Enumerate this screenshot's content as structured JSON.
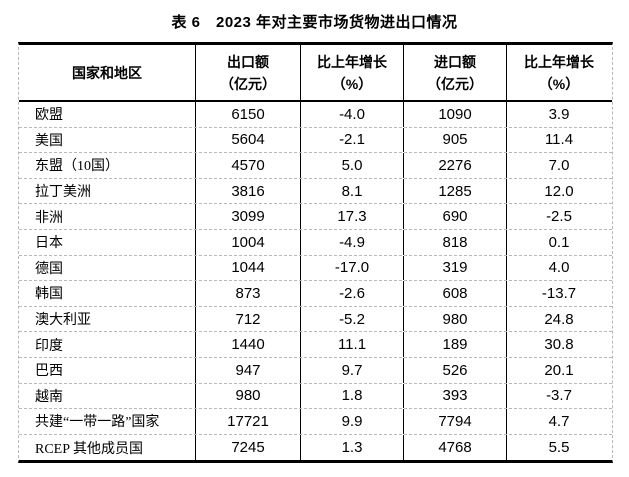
{
  "title": "表 6　2023 年对主要市场货物进出口情况",
  "table": {
    "headers": [
      {
        "line1": "国家和地区",
        "line2": ""
      },
      {
        "line1": "出口额",
        "line2": "（亿元）"
      },
      {
        "line1": "比上年增长",
        "line2": "（%）"
      },
      {
        "line1": "进口额",
        "line2": "（亿元）"
      },
      {
        "line1": "比上年增长",
        "line2": "（%）"
      }
    ],
    "rows": [
      [
        "欧盟",
        "6150",
        "-4.0",
        "1090",
        "3.9"
      ],
      [
        "美国",
        "5604",
        "-2.1",
        "905",
        "11.4"
      ],
      [
        "东盟（10国）",
        "4570",
        "5.0",
        "2276",
        "7.0"
      ],
      [
        "拉丁美洲",
        "3816",
        "8.1",
        "1285",
        "12.0"
      ],
      [
        "非洲",
        "3099",
        "17.3",
        "690",
        "-2.5"
      ],
      [
        "日本",
        "1004",
        "-4.9",
        "818",
        "0.1"
      ],
      [
        "德国",
        "1044",
        "-17.0",
        "319",
        "4.0"
      ],
      [
        "韩国",
        "873",
        "-2.6",
        "608",
        "-13.7"
      ],
      [
        "澳大利亚",
        "712",
        "-5.2",
        "980",
        "24.8"
      ],
      [
        "印度",
        "1440",
        "11.1",
        "189",
        "30.8"
      ],
      [
        "巴西",
        "947",
        "9.7",
        "526",
        "20.1"
      ],
      [
        "越南",
        "980",
        "1.8",
        "393",
        "-3.7"
      ],
      [
        "共建“一带一路”国家",
        "17721",
        "9.9",
        "7794",
        "4.7"
      ],
      [
        "RCEP 其他成员国",
        "7245",
        "1.3",
        "4768",
        "5.5"
      ]
    ]
  },
  "colors": {
    "text": "#000000",
    "heavy_border": "#000000",
    "dashed_border": "#b8b8b8",
    "background": "#ffffff"
  },
  "chart_data": {
    "type": "table",
    "title": "表 6　2023 年对主要市场货物进出口情况",
    "columns": [
      "国家和地区",
      "出口额（亿元）",
      "比上年增长（%）",
      "进口额（亿元）",
      "比上年增长（%）"
    ],
    "rows": [
      [
        "欧盟",
        6150,
        -4.0,
        1090,
        3.9
      ],
      [
        "美国",
        5604,
        -2.1,
        905,
        11.4
      ],
      [
        "东盟（10国）",
        4570,
        5.0,
        2276,
        7.0
      ],
      [
        "拉丁美洲",
        3816,
        8.1,
        1285,
        12.0
      ],
      [
        "非洲",
        3099,
        17.3,
        690,
        -2.5
      ],
      [
        "日本",
        1004,
        -4.9,
        818,
        0.1
      ],
      [
        "德国",
        1044,
        -17.0,
        319,
        4.0
      ],
      [
        "韩国",
        873,
        -2.6,
        608,
        -13.7
      ],
      [
        "澳大利亚",
        712,
        -5.2,
        980,
        24.8
      ],
      [
        "印度",
        1440,
        11.1,
        189,
        30.8
      ],
      [
        "巴西",
        947,
        9.7,
        526,
        20.1
      ],
      [
        "越南",
        980,
        1.8,
        393,
        -3.7
      ],
      [
        "共建“一带一路”国家",
        17721,
        9.9,
        7794,
        4.7
      ],
      [
        "RCEP 其他成员国",
        7245,
        1.3,
        4768,
        5.5
      ]
    ]
  }
}
